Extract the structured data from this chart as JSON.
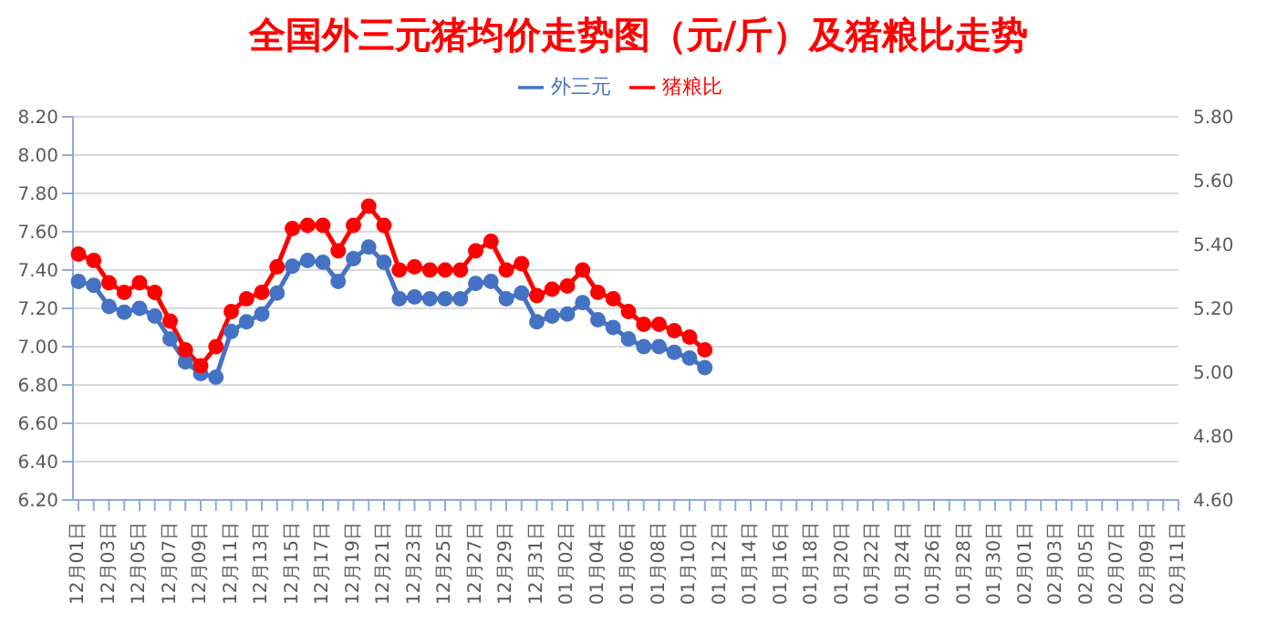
{
  "chart_data": {
    "type": "line",
    "title": "全国外三元猪均价走势图（元/斤）及猪粮比走势",
    "categories": [
      "12月01日",
      null,
      "12月03日",
      null,
      "12月05日",
      null,
      "12月07日",
      null,
      "12月09日",
      null,
      "12月11日",
      null,
      "12月13日",
      null,
      "12月15日",
      null,
      "12月17日",
      null,
      "12月19日",
      null,
      "12月21日",
      null,
      "12月23日",
      null,
      "12月25日",
      null,
      "12月27日",
      null,
      "12月29日",
      null,
      "12月31日",
      null,
      "01月02日",
      null,
      "01月04日",
      null,
      "01月06日",
      null,
      "01月08日",
      null,
      "01月10日",
      null,
      "01月12日",
      null,
      "01月14日",
      null,
      "01月16日",
      null,
      "01月18日",
      null,
      "01月20日",
      null,
      "01月22日",
      null,
      "01月24日",
      null,
      "01月26日",
      null,
      "01月28日",
      null,
      "01月30日",
      null,
      "02月01日",
      null,
      "02月03日",
      null,
      "02月05日",
      null,
      "02月07日",
      null,
      "02月09日",
      null,
      "02月11日"
    ],
    "series": [
      {
        "name": "外三元",
        "color": "#4472c4",
        "values": [
          7.34,
          7.32,
          7.21,
          7.18,
          7.2,
          7.16,
          7.04,
          6.92,
          6.86,
          6.84,
          7.08,
          7.13,
          7.17,
          7.28,
          7.42,
          7.45,
          7.44,
          7.34,
          7.46,
          7.52,
          7.44,
          7.25,
          7.26,
          7.25,
          7.25,
          7.25,
          7.33,
          7.34,
          7.25,
          7.28,
          7.13,
          7.16,
          7.17,
          7.23,
          7.14,
          7.1,
          7.04,
          7.0,
          7.0,
          6.97,
          6.94,
          6.89,
          null,
          null,
          null,
          null,
          null,
          null,
          null,
          null,
          null,
          null,
          null,
          null,
          null,
          null,
          null,
          null,
          null,
          null,
          null,
          null,
          null,
          null,
          null,
          null,
          null,
          null,
          null,
          null,
          null,
          null,
          null
        ]
      },
      {
        "name": "猪粮比",
        "color": "#ff0000",
        "axis": "y2",
        "values": [
          5.37,
          5.35,
          5.28,
          5.25,
          5.28,
          5.25,
          5.16,
          5.07,
          5.02,
          5.08,
          5.19,
          5.23,
          5.25,
          5.33,
          5.45,
          5.46,
          5.46,
          5.38,
          5.46,
          5.52,
          5.46,
          5.32,
          5.33,
          5.32,
          5.32,
          5.32,
          5.38,
          5.41,
          5.32,
          5.34,
          5.24,
          5.26,
          5.27,
          5.32,
          5.25,
          5.23,
          5.19,
          5.15,
          5.15,
          5.13,
          5.11,
          5.07,
          null,
          null,
          null,
          null,
          null,
          null,
          null,
          null,
          null,
          null,
          null,
          null,
          null,
          null,
          null,
          null,
          null,
          null,
          null,
          null,
          null,
          null,
          null,
          null,
          null,
          null,
          null,
          null,
          null,
          null,
          null
        ]
      }
    ],
    "ylim": [
      6.2,
      8.2
    ],
    "yticks": [
      {
        "value": 6.2,
        "label": "6.20"
      },
      {
        "value": 6.4,
        "label": "6.40"
      },
      {
        "value": 6.6,
        "label": "6.60"
      },
      {
        "value": 6.8,
        "label": "6.80"
      },
      {
        "value": 7.0,
        "label": "7.00"
      },
      {
        "value": 7.2,
        "label": "7.20"
      },
      {
        "value": 7.4,
        "label": "7.40"
      },
      {
        "value": 7.6,
        "label": "7.60"
      },
      {
        "value": 7.8,
        "label": "7.80"
      },
      {
        "value": 8.0,
        "label": "8.00"
      },
      {
        "value": 8.2,
        "label": "8.20"
      }
    ],
    "y2lim": [
      4.6,
      5.8
    ],
    "y2ticks": [
      {
        "value": 4.6,
        "label": "4.60"
      },
      {
        "value": 4.8,
        "label": "4.80"
      },
      {
        "value": 5.0,
        "label": "5.00"
      },
      {
        "value": 5.2,
        "label": "5.20"
      },
      {
        "value": 5.4,
        "label": "5.40"
      },
      {
        "value": 5.6,
        "label": "5.60"
      },
      {
        "value": 5.8,
        "label": "5.80"
      }
    ],
    "grid": "y",
    "legend": "top",
    "marker": "circle",
    "line_style": "solid"
  }
}
